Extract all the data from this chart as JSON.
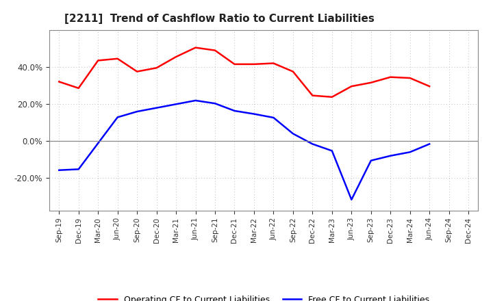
{
  "title": "[2211]  Trend of Cashflow Ratio to Current Liabilities",
  "x_labels": [
    "Sep-19",
    "Dec-19",
    "Mar-20",
    "Jun-20",
    "Sep-20",
    "Dec-20",
    "Mar-21",
    "Jun-21",
    "Sep-21",
    "Dec-21",
    "Mar-22",
    "Jun-22",
    "Sep-22",
    "Dec-22",
    "Mar-23",
    "Jun-23",
    "Sep-23",
    "Dec-23",
    "Mar-24",
    "Jun-24",
    "Sep-24",
    "Dec-24"
  ],
  "operating_cf": [
    0.32,
    0.285,
    0.435,
    0.445,
    0.375,
    0.395,
    0.455,
    0.505,
    0.49,
    0.415,
    0.415,
    0.42,
    0.375,
    0.245,
    0.237,
    0.295,
    0.315,
    0.345,
    0.34,
    0.295,
    null,
    null
  ],
  "free_cf": [
    -0.16,
    -0.155,
    null,
    0.127,
    0.158,
    0.178,
    0.198,
    0.218,
    0.202,
    0.162,
    0.145,
    0.125,
    0.038,
    -0.018,
    -0.055,
    -0.32,
    -0.108,
    -0.082,
    -0.062,
    -0.018,
    null,
    null
  ],
  "operating_color": "#FF0000",
  "free_color": "#0000FF",
  "ylim": [
    -0.38,
    0.6
  ],
  "yticks": [
    -0.2,
    0.0,
    0.2,
    0.4
  ],
  "background_color": "#ffffff",
  "grid_color": "#bbbbbb"
}
